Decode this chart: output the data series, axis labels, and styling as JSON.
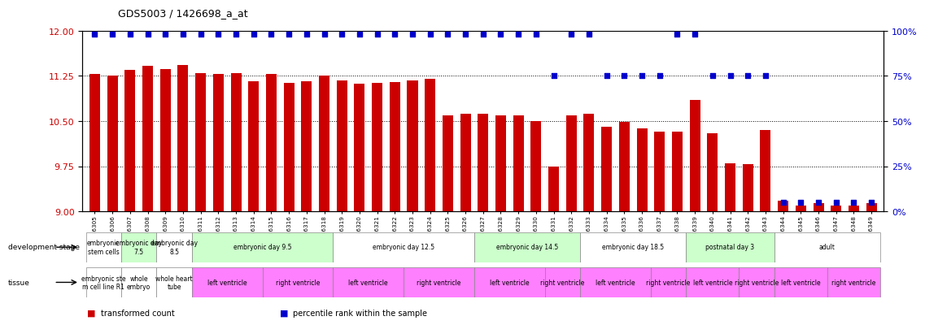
{
  "title": "GDS5003 / 1426698_a_at",
  "gsm_labels": [
    "GSM1246305",
    "GSM1246306",
    "GSM1246307",
    "GSM1246308",
    "GSM1246309",
    "GSM1246310",
    "GSM1246311",
    "GSM1246312",
    "GSM1246313",
    "GSM1246314",
    "GSM1246315",
    "GSM1246316",
    "GSM1246317",
    "GSM1246318",
    "GSM1246319",
    "GSM1246320",
    "GSM1246321",
    "GSM1246322",
    "GSM1246323",
    "GSM1246324",
    "GSM1246325",
    "GSM1246326",
    "GSM1246327",
    "GSM1246328",
    "GSM1246329",
    "GSM1246330",
    "GSM1246331",
    "GSM1246332",
    "GSM1246333",
    "GSM1246334",
    "GSM1246335",
    "GSM1246336",
    "GSM1246337",
    "GSM1246338",
    "GSM1246339",
    "GSM1246340",
    "GSM1246341",
    "GSM1246342",
    "GSM1246343",
    "GSM1246344",
    "GSM1246345",
    "GSM1246346",
    "GSM1246347",
    "GSM1246348",
    "GSM1246349"
  ],
  "bar_values": [
    11.28,
    11.26,
    11.35,
    11.42,
    11.37,
    11.43,
    11.3,
    11.28,
    11.3,
    11.16,
    11.28,
    11.14,
    11.16,
    11.25,
    11.18,
    11.12,
    11.13,
    11.15,
    11.18,
    11.2,
    10.6,
    10.62,
    10.62,
    10.6,
    10.6,
    10.5,
    9.75,
    10.6,
    10.62,
    10.4,
    10.48,
    10.38,
    10.32,
    10.32,
    10.85,
    10.3,
    9.8,
    9.79,
    10.35,
    9.18,
    9.1,
    9.14,
    9.1,
    9.1,
    9.13
  ],
  "percentile_values": [
    98,
    98,
    98,
    98,
    98,
    98,
    98,
    98,
    98,
    98,
    98,
    98,
    98,
    98,
    98,
    98,
    98,
    98,
    98,
    98,
    98,
    98,
    98,
    98,
    98,
    98,
    75,
    98,
    98,
    75,
    75,
    75,
    75,
    98,
    98,
    75,
    75,
    75,
    75,
    5,
    5,
    5,
    5,
    5,
    5
  ],
  "ymin": 9.0,
  "ymax": 12.0,
  "ylim_right": [
    0,
    100
  ],
  "yticks_left": [
    9.0,
    9.75,
    10.5,
    11.25,
    12.0
  ],
  "yticks_right": [
    0,
    25,
    50,
    75,
    100
  ],
  "bar_color": "#cc0000",
  "dot_color": "#0000cc",
  "background_color": "#ffffff",
  "dev_stage_groups": [
    {
      "label": "embryonic\nstem cells",
      "start": 0,
      "end": 2,
      "color": "#ffffff"
    },
    {
      "label": "embryonic day\n7.5",
      "start": 2,
      "end": 4,
      "color": "#ccffcc"
    },
    {
      "label": "embryonic day\n8.5",
      "start": 4,
      "end": 6,
      "color": "#ffffff"
    },
    {
      "label": "embryonic day 9.5",
      "start": 6,
      "end": 14,
      "color": "#ccffcc"
    },
    {
      "label": "embryonic day 12.5",
      "start": 14,
      "end": 22,
      "color": "#ffffff"
    },
    {
      "label": "embryonic day 14.5",
      "start": 22,
      "end": 28,
      "color": "#ccffcc"
    },
    {
      "label": "embryonic day 18.5",
      "start": 28,
      "end": 34,
      "color": "#ffffff"
    },
    {
      "label": "postnatal day 3",
      "start": 34,
      "end": 39,
      "color": "#ccffcc"
    },
    {
      "label": "adult",
      "start": 39,
      "end": 45,
      "color": "#ffffff"
    }
  ],
  "tissue_groups": [
    {
      "label": "embryonic ste\nm cell line R1",
      "start": 0,
      "end": 2,
      "color": "#ffffff"
    },
    {
      "label": "whole\nembryo",
      "start": 2,
      "end": 4,
      "color": "#ffffff"
    },
    {
      "label": "whole heart\ntube",
      "start": 4,
      "end": 6,
      "color": "#ffffff"
    },
    {
      "label": "left ventricle",
      "start": 6,
      "end": 10,
      "color": "#ff80ff"
    },
    {
      "label": "right ventricle",
      "start": 10,
      "end": 14,
      "color": "#ff80ff"
    },
    {
      "label": "left ventricle",
      "start": 14,
      "end": 18,
      "color": "#ff80ff"
    },
    {
      "label": "right ventricle",
      "start": 18,
      "end": 22,
      "color": "#ff80ff"
    },
    {
      "label": "left ventricle",
      "start": 22,
      "end": 26,
      "color": "#ff80ff"
    },
    {
      "label": "right ventricle",
      "start": 26,
      "end": 28,
      "color": "#ff80ff"
    },
    {
      "label": "left ventricle",
      "start": 28,
      "end": 32,
      "color": "#ff80ff"
    },
    {
      "label": "right ventricle",
      "start": 32,
      "end": 34,
      "color": "#ff80ff"
    },
    {
      "label": "left ventricle",
      "start": 34,
      "end": 37,
      "color": "#ff80ff"
    },
    {
      "label": "right ventricle",
      "start": 37,
      "end": 39,
      "color": "#ff80ff"
    },
    {
      "label": "left ventricle",
      "start": 39,
      "end": 42,
      "color": "#ff80ff"
    },
    {
      "label": "right ventricle",
      "start": 42,
      "end": 45,
      "color": "#ff80ff"
    }
  ],
  "legend_items": [
    {
      "label": "transformed count",
      "color": "#cc0000"
    },
    {
      "label": "percentile rank within the sample",
      "color": "#0000cc"
    }
  ]
}
